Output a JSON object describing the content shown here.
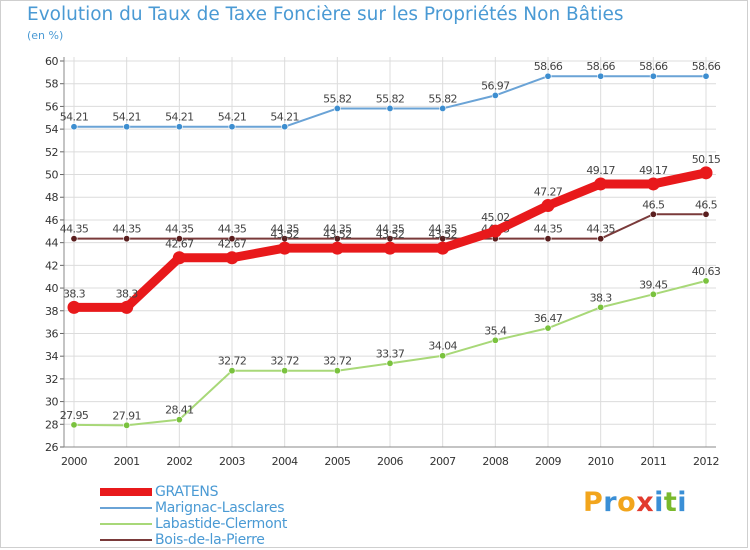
{
  "header": {
    "title": "Evolution du Taux de Taxe Foncière sur les Propriétés Non Bâties",
    "subtitle": "(en %)"
  },
  "logo": {
    "text": "Proxiti",
    "letters": [
      "P",
      "r",
      "o",
      "x",
      "i",
      "t",
      "i"
    ],
    "colors": [
      "#f2a51c",
      "#3a8fd6",
      "#f2a51c",
      "#e23b2e",
      "#3a8fd6",
      "#7ab92c",
      "#3a8fd6"
    ]
  },
  "chart_data": {
    "type": "line",
    "title": "Evolution du Taux de Taxe Foncière sur les Propriétés Non Bâties",
    "ylabel": "(en %)",
    "xlabel": "",
    "ylim": [
      26,
      60
    ],
    "yticks": [
      "26",
      "28",
      "30",
      "32",
      "34",
      "36",
      "38",
      "40",
      "42",
      "44",
      "46",
      "48",
      "50",
      "52",
      "54",
      "56",
      "58",
      "60"
    ],
    "categories": [
      "2000",
      "2001",
      "2002",
      "2003",
      "2004",
      "2005",
      "2006",
      "2007",
      "2008",
      "2009",
      "2010",
      "2011",
      "2012"
    ],
    "grid": true,
    "legend_position": "bottom-left",
    "series": [
      {
        "name": "Marignac-Lasclares",
        "color": "#6aa3d6",
        "point_color": "#3d8ed0",
        "values": [
          54.21,
          54.21,
          54.21,
          54.21,
          54.21,
          55.82,
          55.82,
          55.82,
          56.97,
          58.66,
          58.66,
          58.66,
          58.66
        ],
        "labels": [
          "54.21",
          "54.21",
          "54.21",
          "54.21",
          "54.21",
          "55.82",
          "55.82",
          "55.82",
          "56.97",
          "58.66",
          "58.66",
          "58.66",
          "58.66"
        ]
      },
      {
        "name": "Bois-de-la-Pierre",
        "color": "#7a3a3a",
        "point_color": "#5a1e1e",
        "values": [
          44.35,
          44.35,
          44.35,
          44.35,
          44.35,
          44.35,
          44.35,
          44.35,
          44.35,
          44.35,
          44.35,
          46.5,
          46.5
        ],
        "labels": [
          "44.35",
          "44.35",
          "44.35",
          "44.35",
          "44.35",
          "44.35",
          "44.35",
          "44.35",
          "44.35",
          "44.35",
          "44.35",
          "46.5",
          "46.5"
        ]
      },
      {
        "name": "Labastide-Clermont",
        "color": "#a8d878",
        "point_color": "#7ac23e",
        "values": [
          27.95,
          27.91,
          28.41,
          32.72,
          32.72,
          32.72,
          33.37,
          34.04,
          35.4,
          36.47,
          38.3,
          39.45,
          40.63
        ],
        "labels": [
          "27.95",
          "27.91",
          "28.41",
          "32.72",
          "32.72",
          "32.72",
          "33.37",
          "34.04",
          "35.4",
          "36.47",
          "38.3",
          "39.45",
          "40.63"
        ]
      },
      {
        "name": "GRATENS",
        "color": "#e8191b",
        "point_color": "#e8191b",
        "values": [
          38.3,
          38.3,
          42.67,
          42.67,
          43.52,
          43.52,
          43.52,
          43.52,
          45.02,
          47.27,
          49.17,
          49.17,
          50.15
        ],
        "labels": [
          "38.3",
          "38.3",
          "42.67",
          "42.67",
          "43.52",
          "43.52",
          "43.52",
          "43.52",
          "45.02",
          "47.27",
          "49.17",
          "49.17",
          "50.15"
        ]
      }
    ]
  },
  "legend": [
    {
      "label": "GRATENS",
      "color": "#e8191b"
    },
    {
      "label": "Marignac-Lasclares",
      "color": "#6aa3d6"
    },
    {
      "label": "Labastide-Clermont",
      "color": "#a8d878"
    },
    {
      "label": "Bois-de-la-Pierre",
      "color": "#7a3a3a"
    }
  ]
}
